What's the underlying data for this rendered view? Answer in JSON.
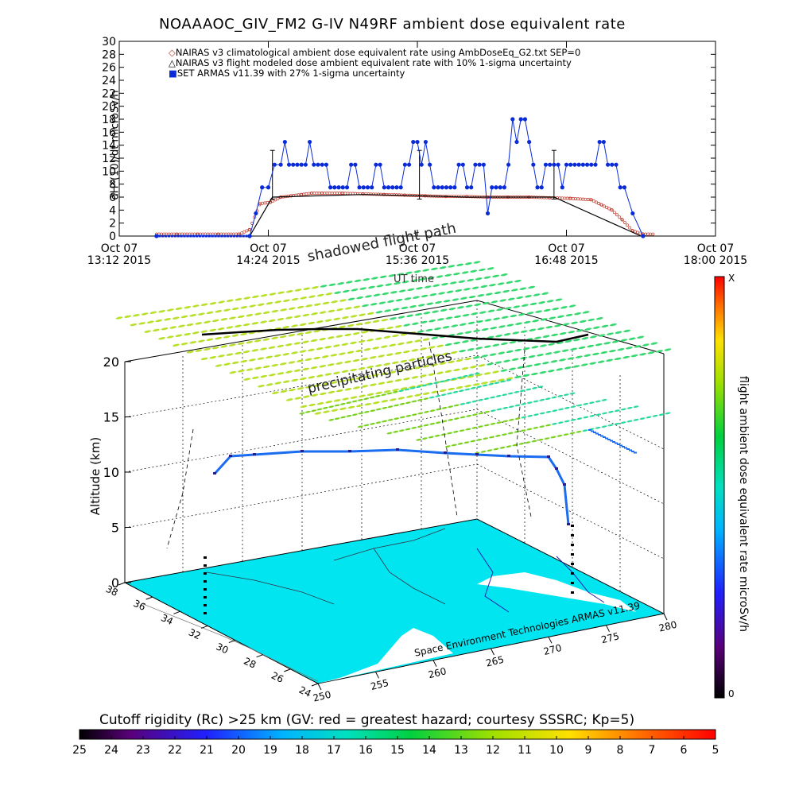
{
  "title": "NOAAAOC_GIV_FM2 G-IV    N49RF  ambient dose equivalent rate",
  "colors": {
    "nairas_climatological": "#c0392b",
    "nairas_flight": "#000000",
    "armas": "#0a2bd8",
    "dose_field": "#7ad21f",
    "cutoff_map": "#00e5f0"
  },
  "chart_data": [
    {
      "type": "line",
      "ylabel": "dH*(10)/dt microSv/h",
      "xlabel": "UT time",
      "ylim": [
        0,
        30
      ],
      "yticks": [
        0,
        2,
        4,
        6,
        8,
        10,
        12,
        14,
        16,
        18,
        20,
        22,
        24,
        26,
        28,
        30
      ],
      "xticks": [
        {
          "date": "Oct 07",
          "time": "13:12 2015"
        },
        {
          "date": "Oct 07",
          "time": "14:24 2015"
        },
        {
          "date": "Oct 07",
          "time": "15:36 2015"
        },
        {
          "date": "Oct 07",
          "time": "16:48 2015"
        },
        {
          "date": "Oct 07",
          "time": "18:00 2015"
        }
      ],
      "xlim_minutes_utc": [
        792,
        1080
      ],
      "legend": [
        "NAIRAS v3 climatological ambient dose equivalent rate using AmbDoseEq_G2.txt SEP=0",
        "NAIRAS v3 flight modeled dose ambient equivalent rate with 10% 1-sigma uncertainty",
        "SET ARMAS v11.39 with 27% 1-sigma uncertainty"
      ],
      "series": [
        {
          "name": "NAIRAS v3 climatological ambient dose equivalent rate using AmbDoseEq_G2.txt SEP=0",
          "x_minutes_utc": [
            810,
            820,
            830,
            840,
            850,
            855,
            860,
            865,
            870,
            875,
            880,
            885,
            890,
            900,
            910,
            920,
            930,
            940,
            950,
            960,
            970,
            980,
            990,
            1000,
            1010,
            1020,
            1025,
            1030,
            1035,
            1040,
            1045,
            1050
          ],
          "values": [
            0.3,
            0.3,
            0.3,
            0.3,
            0.3,
            1.0,
            5.0,
            5.2,
            6.0,
            6.2,
            6.4,
            6.6,
            6.6,
            6.6,
            6.5,
            6.4,
            6.3,
            6.2,
            6.1,
            6.1,
            6.0,
            6.0,
            6.0,
            5.9,
            5.8,
            5.6,
            4.8,
            4.0,
            2.5,
            0.8,
            0.3,
            0.3
          ]
        },
        {
          "name": "NAIRAS v3 flight modeled dose ambient equivalent rate with 10% 1-sigma uncertainty",
          "x_minutes_utc": [
            810,
            855,
            866,
            910,
            937,
            960,
            1002,
            1044
          ],
          "values": [
            0,
            0,
            6.0,
            6.4,
            6.2,
            6.0,
            6.0,
            0
          ]
        },
        {
          "name": "SET ARMAS v11.39 with 27% 1-sigma uncertainty",
          "x_minutes_utc": [
            810,
            855,
            858,
            861,
            864,
            867,
            870,
            872,
            874,
            876,
            878,
            880,
            882,
            884,
            886,
            888,
            890,
            892,
            894,
            896,
            898,
            900,
            902,
            904,
            906,
            908,
            910,
            912,
            914,
            916,
            918,
            920,
            922,
            924,
            926,
            928,
            930,
            932,
            934,
            936,
            938,
            940,
            942,
            944,
            946,
            948,
            950,
            952,
            954,
            956,
            958,
            960,
            962,
            964,
            966,
            968,
            970,
            972,
            974,
            976,
            978,
            980,
            982,
            984,
            986,
            988,
            990,
            992,
            994,
            996,
            998,
            1000,
            1002,
            1004,
            1006,
            1008,
            1010,
            1012,
            1014,
            1016,
            1018,
            1020,
            1022,
            1024,
            1026,
            1028,
            1030,
            1032,
            1034,
            1036,
            1040,
            1045
          ],
          "values": [
            0,
            0,
            3.5,
            7.5,
            7.5,
            11,
            11,
            14.5,
            11,
            11,
            11,
            11,
            11,
            14.5,
            11,
            11,
            11,
            11,
            7.5,
            7.5,
            7.5,
            7.5,
            7.5,
            11,
            11,
            7.5,
            7.5,
            7.5,
            7.5,
            11,
            11,
            7.5,
            7.5,
            7.5,
            7.5,
            7.5,
            11,
            11,
            14.5,
            14.5,
            11,
            14.5,
            11,
            7.5,
            7.5,
            7.5,
            7.5,
            7.5,
            7.5,
            11,
            11,
            7.5,
            7.5,
            11,
            11,
            11,
            3.5,
            7.5,
            7.5,
            7.5,
            7.5,
            11,
            18,
            14.5,
            18,
            18,
            14.5,
            11,
            7.5,
            7.5,
            11,
            11,
            11,
            11,
            7.5,
            11,
            11,
            11,
            11,
            11,
            11,
            11,
            11,
            14.5,
            14.5,
            11,
            11,
            11,
            7.5,
            7.5,
            3.5,
            0
          ]
        }
      ]
    },
    {
      "type": "scatter",
      "subtype": "3d flight track over map",
      "zlabel": "Altitude (km)",
      "zlim": [
        0,
        20
      ],
      "zticks": [
        0,
        5,
        10,
        15,
        20
      ],
      "latitude_ticks": [
        "24",
        "26",
        "28",
        "30",
        "32",
        "34",
        "36",
        "38"
      ],
      "longitude_ticks": [
        "250",
        "255",
        "260",
        "265",
        "270",
        "275",
        "280"
      ],
      "annotations": [
        "shadowed flight path",
        "precipitating particles",
        "Space Environment Technologies ARMAS v11.39"
      ],
      "track_altitude_km": [
        0.5,
        8,
        11.5,
        11.8,
        12,
        12,
        12,
        11.8,
        11.5,
        11.5,
        11.5,
        8,
        0.5
      ]
    }
  ],
  "colorbar_right": {
    "label": "flight ambient dose equivalent rate microSv/h",
    "top_label": "X",
    "bottom_label": "0"
  },
  "colorbar_bottom": {
    "title": "Cutoff rigidity (Rc) >25 km (GV: red = greatest hazard; courtesy SSSRC; Kp=5)",
    "ticks": [
      "25",
      "24",
      "23",
      "22",
      "21",
      "20",
      "19",
      "18",
      "17",
      "16",
      "15",
      "14",
      "13",
      "12",
      "11",
      "10",
      "9",
      "8",
      "7",
      "6",
      "5"
    ]
  },
  "upper_axis_label": "UT time"
}
